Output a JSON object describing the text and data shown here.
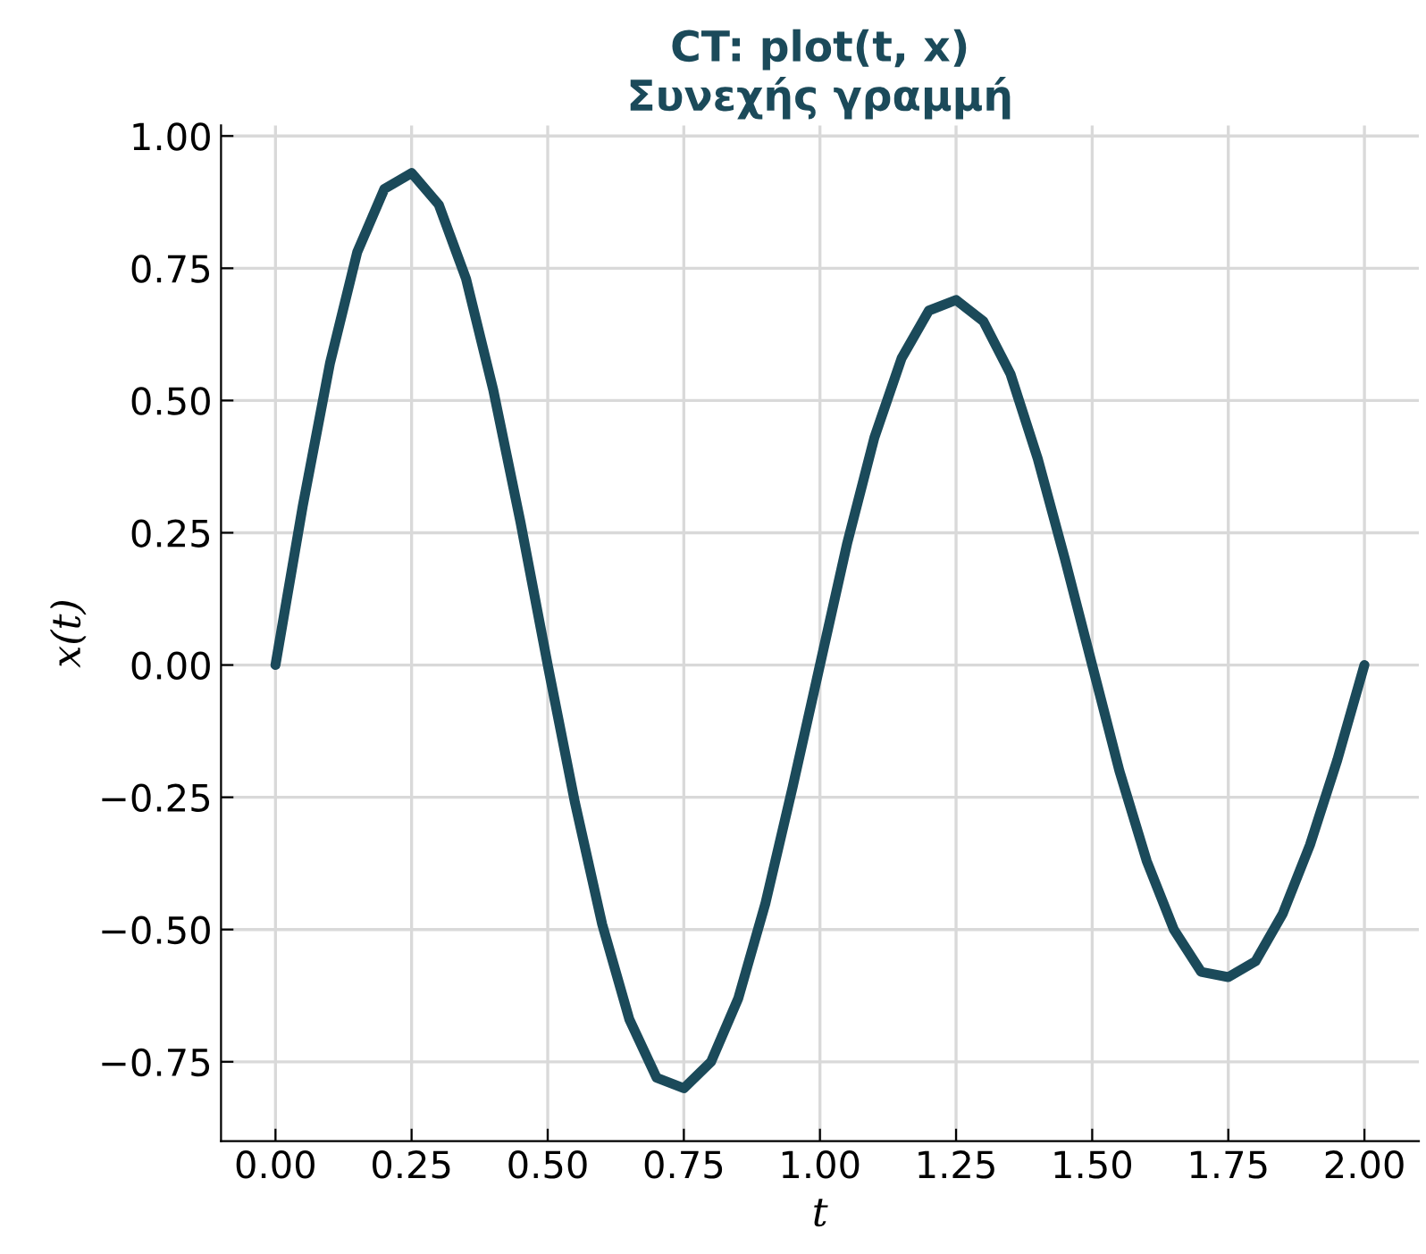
{
  "chart_data": {
    "type": "line",
    "title": "CT: plot(t, x)\nΣυνεχής γραμμή",
    "xlabel": "t",
    "ylabel": "x(t)",
    "x": [
      0,
      0.05,
      0.1,
      0.15,
      0.2,
      0.25,
      0.3,
      0.35,
      0.4,
      0.45,
      0.5,
      0.55,
      0.6,
      0.65,
      0.7,
      0.75,
      0.8,
      0.85,
      0.9,
      0.95,
      1.0,
      1.05,
      1.1,
      1.15,
      1.2,
      1.25,
      1.3,
      1.35,
      1.4,
      1.45,
      1.5,
      1.55,
      1.6,
      1.65,
      1.7,
      1.75,
      1.8,
      1.85,
      1.9,
      1.95,
      2.0
    ],
    "series": [
      {
        "color": "#1b4a5a",
        "values": [
          0,
          0.3,
          0.57,
          0.78,
          0.9,
          0.93,
          0.87,
          0.73,
          0.52,
          0.27,
          0,
          -0.26,
          -0.49,
          -0.67,
          -0.78,
          -0.8,
          -0.75,
          -0.63,
          -0.45,
          -0.23,
          0,
          0.23,
          0.43,
          0.58,
          0.67,
          0.69,
          0.65,
          0.55,
          0.39,
          0.2,
          0,
          -0.2,
          -0.37,
          -0.5,
          -0.58,
          -0.59,
          -0.56,
          -0.47,
          -0.34,
          -0.18,
          0
        ]
      }
    ],
    "xlim": [
      -0.1,
      2.1
    ],
    "ylim": [
      -0.9,
      1.02
    ],
    "xticks": [
      {
        "value": 0,
        "label": "0.00"
      },
      0.25,
      {
        "value": 0.5,
        "label": "0.50"
      },
      0.75,
      {
        "value": 1,
        "label": "1.00"
      },
      1.25,
      {
        "value": 1.5,
        "label": "1.50"
      },
      1.75,
      {
        "value": 2,
        "label": "2.00"
      }
    ],
    "yticks": [
      {
        "value": -0.75,
        "label": "−0.75"
      },
      {
        "value": -0.5,
        "label": "−0.50"
      },
      {
        "value": -0.25,
        "label": "−0.25"
      },
      {
        "value": 0,
        "label": "0.00"
      },
      0.25,
      {
        "value": 0.5,
        "label": "0.50"
      },
      0.75,
      {
        "value": 1,
        "label": "1.00"
      }
    ],
    "grid": true,
    "line_style": "solid",
    "marker": "none"
  }
}
